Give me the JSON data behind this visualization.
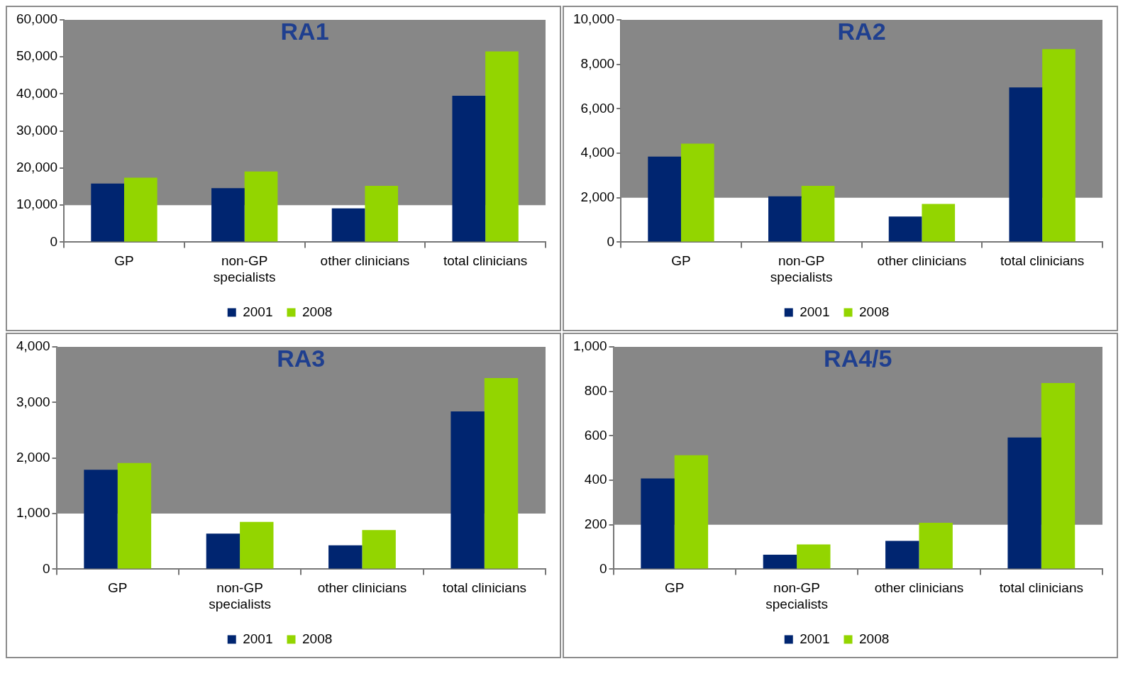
{
  "chart_data": [
    {
      "type": "bar",
      "title": "RA1",
      "categories": [
        "GP",
        "non-GP specialists",
        "other clinicians",
        "total clinicians"
      ],
      "series": [
        {
          "name": "2001",
          "color": "#002570",
          "values": [
            15800,
            14600,
            9100,
            39500
          ]
        },
        {
          "name": "2008",
          "color": "#93d500",
          "values": [
            17400,
            19100,
            15200,
            51500
          ]
        }
      ],
      "ylim": [
        0,
        60000
      ],
      "yticks": [
        {
          "value": 0,
          "label": "0"
        },
        {
          "value": 10000,
          "label": "10,000"
        },
        {
          "value": 20000,
          "label": "20,000"
        },
        {
          "value": 30000,
          "label": "30,000"
        },
        {
          "value": 40000,
          "label": "40,000"
        },
        {
          "value": 50000,
          "label": "50,000"
        },
        {
          "value": 60000,
          "label": "60,000"
        }
      ],
      "bands": [
        {
          "axis": "y",
          "from": 10000,
          "to": 60000,
          "color": "#878787"
        }
      ],
      "legend": "bottom"
    },
    {
      "type": "bar",
      "title": "RA2",
      "categories": [
        "GP",
        "non-GP specialists",
        "other clinicians",
        "total clinicians"
      ],
      "series": [
        {
          "name": "2001",
          "color": "#002570",
          "values": [
            3850,
            2060,
            1150,
            6960
          ]
        },
        {
          "name": "2008",
          "color": "#93d500",
          "values": [
            4430,
            2530,
            1720,
            8680
          ]
        }
      ],
      "ylim": [
        0,
        10000
      ],
      "yticks": [
        {
          "value": 0,
          "label": "0"
        },
        {
          "value": 2000,
          "label": "2,000"
        },
        {
          "value": 4000,
          "label": "4,000"
        },
        {
          "value": 6000,
          "label": "6,000"
        },
        {
          "value": 8000,
          "label": "8,000"
        },
        {
          "value": 10000,
          "label": "10,000"
        }
      ],
      "bands": [
        {
          "axis": "y",
          "from": 2000,
          "to": 10000,
          "color": "#878787"
        }
      ],
      "legend": "bottom"
    },
    {
      "type": "bar",
      "title": "RA3",
      "categories": [
        "GP",
        "non-GP specialists",
        "other clinicians",
        "total clinicians"
      ],
      "series": [
        {
          "name": "2001",
          "color": "#002570",
          "values": [
            1790,
            640,
            430,
            2840
          ]
        },
        {
          "name": "2008",
          "color": "#93d500",
          "values": [
            1910,
            850,
            705,
            3440
          ]
        }
      ],
      "ylim": [
        0,
        4000
      ],
      "yticks": [
        {
          "value": 0,
          "label": "0"
        },
        {
          "value": 1000,
          "label": "1,000"
        },
        {
          "value": 2000,
          "label": "2,000"
        },
        {
          "value": 3000,
          "label": "3,000"
        },
        {
          "value": 4000,
          "label": "4,000"
        }
      ],
      "bands": [
        {
          "axis": "y",
          "from": 1000,
          "to": 4000,
          "color": "#878787"
        }
      ],
      "legend": "bottom"
    },
    {
      "type": "bar",
      "title": "RA4/5",
      "categories": [
        "GP",
        "non-GP specialists",
        "other clinicians",
        "total clinicians"
      ],
      "series": [
        {
          "name": "2001",
          "color": "#002570",
          "values": [
            408,
            65,
            127,
            592
          ]
        },
        {
          "name": "2008",
          "color": "#93d500",
          "values": [
            513,
            111,
            209,
            837
          ]
        }
      ],
      "ylim": [
        0,
        1000
      ],
      "yticks": [
        {
          "value": 0,
          "label": "0"
        },
        {
          "value": 200,
          "label": "200"
        },
        {
          "value": 400,
          "label": "400"
        },
        {
          "value": 600,
          "label": "600"
        },
        {
          "value": 800,
          "label": "800"
        },
        {
          "value": 1000,
          "label": "1,000"
        }
      ],
      "bands": [
        {
          "axis": "y",
          "from": 200,
          "to": 1000,
          "color": "#878787"
        }
      ],
      "legend": "bottom"
    }
  ]
}
